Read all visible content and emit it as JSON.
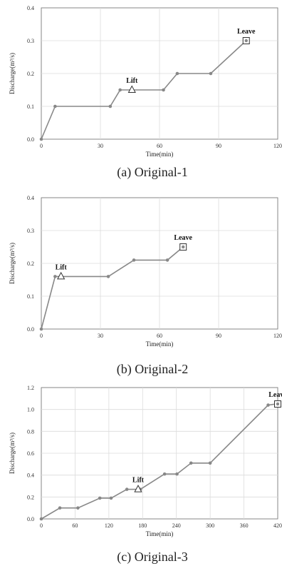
{
  "chart_data": [
    {
      "type": "line",
      "caption": "(a)  Original-1",
      "xlabel": "Time(min)",
      "ylabel": "Discharge(m³/s)",
      "xlim": [
        0,
        120
      ],
      "ylim": [
        0,
        0.4
      ],
      "xticks": [
        "0",
        "30",
        "60",
        "90",
        "120"
      ],
      "yticks": [
        "0.0",
        "0.1",
        "0.2",
        "0.3",
        "0.4"
      ],
      "grid": true,
      "series": [
        {
          "points": [
            [
              0,
              0
            ],
            [
              7,
              0.1
            ],
            [
              35,
              0.1
            ],
            [
              40,
              0.15
            ],
            [
              62,
              0.15
            ],
            [
              69,
              0.2
            ],
            [
              86,
              0.2
            ],
            [
              104,
              0.3
            ]
          ]
        }
      ],
      "annotations": [
        {
          "label": "Lift",
          "marker": "triangle",
          "x": 46,
          "y": 0.15
        },
        {
          "label": "Leave",
          "marker": "square",
          "x": 104,
          "y": 0.3
        }
      ]
    },
    {
      "type": "line",
      "caption": "(b)  Original-2",
      "xlabel": "Time(min)",
      "ylabel": "Discharge(m³/s)",
      "xlim": [
        0,
        120
      ],
      "ylim": [
        0,
        0.4
      ],
      "xticks": [
        "0",
        "30",
        "60",
        "90",
        "120"
      ],
      "yticks": [
        "0.0",
        "0.1",
        "0.2",
        "0.3",
        "0.4"
      ],
      "grid": true,
      "series": [
        {
          "points": [
            [
              0,
              0
            ],
            [
              7,
              0.16
            ],
            [
              34,
              0.16
            ],
            [
              47,
              0.21
            ],
            [
              64,
              0.21
            ],
            [
              72,
              0.25
            ]
          ]
        }
      ],
      "annotations": [
        {
          "label": "Lift",
          "marker": "triangle",
          "x": 10,
          "y": 0.16
        },
        {
          "label": "Leave",
          "marker": "square",
          "x": 72,
          "y": 0.25
        }
      ]
    },
    {
      "type": "line",
      "caption": "(c)  Original-3",
      "xlabel": "Time(min)",
      "ylabel": "Discharge(m³/s)",
      "xlim": [
        0,
        420
      ],
      "ylim": [
        0,
        1.2
      ],
      "xticks": [
        "0",
        "60",
        "120",
        "180",
        "240",
        "300",
        "360",
        "420"
      ],
      "yticks": [
        "0.0",
        "0.2",
        "0.4",
        "0.6",
        "0.8",
        "1.0",
        "1.2"
      ],
      "grid": true,
      "series": [
        {
          "points": [
            [
              0,
              0
            ],
            [
              33,
              0.1
            ],
            [
              65,
              0.1
            ],
            [
              104,
              0.19
            ],
            [
              124,
              0.19
            ],
            [
              152,
              0.27
            ],
            [
              176,
              0.27
            ],
            [
              219,
              0.41
            ],
            [
              241,
              0.41
            ],
            [
              266,
              0.51
            ],
            [
              300,
              0.51
            ],
            [
              403,
              1.04
            ],
            [
              417,
              1.05
            ]
          ]
        }
      ],
      "annotations": [
        {
          "label": "Lift",
          "marker": "triangle",
          "x": 172,
          "y": 0.27
        },
        {
          "label": "Leave",
          "marker": "square",
          "x": 420,
          "y": 1.05
        }
      ]
    }
  ]
}
